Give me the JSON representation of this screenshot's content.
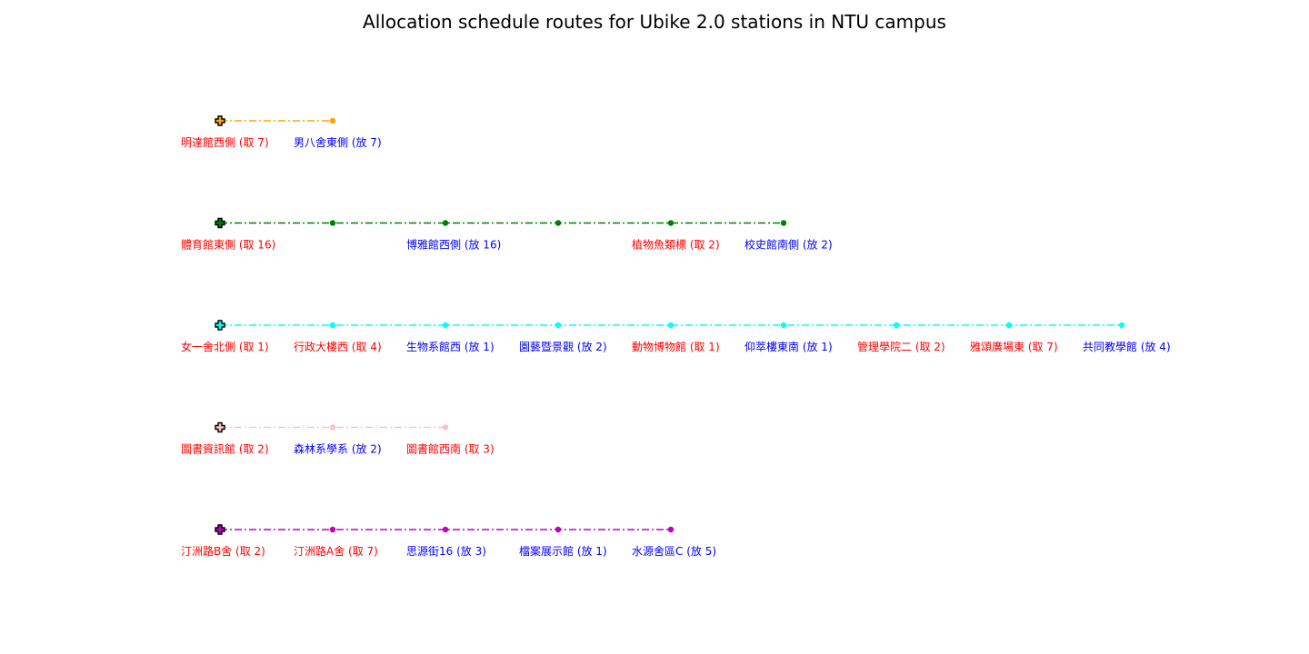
{
  "chart_data": {
    "type": "line",
    "title": "Allocation schedule routes for Ubike 2.0 stations in NTU campus",
    "xlabel": "",
    "ylabel": "",
    "grid": false,
    "axes_visible": false,
    "line_style": "dash-dot",
    "start_marker": "plus",
    "stop_marker": "circle",
    "label_colors": {
      "取": "#ff0000",
      "放": "#0000ff"
    },
    "routes": [
      {
        "color": "#ffa500",
        "stops": [
          {
            "station": "明達館西側",
            "action": "取",
            "qty": 7,
            "label": "明達館西側 (取 7)"
          },
          {
            "station": "男八舍東側",
            "action": "放",
            "qty": 7,
            "label": "男八舍東側 (放 7)"
          }
        ]
      },
      {
        "color": "#008000",
        "stops": [
          {
            "station": "體育館東側",
            "action": "取",
            "qty": 16,
            "label": "體育館東側 (取 16)"
          },
          {
            "station": "",
            "action": "",
            "qty": null,
            "label": ""
          },
          {
            "station": "博雅館西側",
            "action": "放",
            "qty": 16,
            "label": "博雅館西側 (放 16)"
          },
          {
            "station": "",
            "action": "",
            "qty": null,
            "label": ""
          },
          {
            "station": "植物魚類標",
            "action": "取",
            "qty": 2,
            "label": "植物魚類標 (取 2)"
          },
          {
            "station": "校史館南側",
            "action": "放",
            "qty": 2,
            "label": "校史館南側 (放 2)"
          }
        ]
      },
      {
        "color": "#00ffff",
        "stops": [
          {
            "station": "女一舍北側",
            "action": "取",
            "qty": 1,
            "label": "女一舍北側 (取 1)"
          },
          {
            "station": "行政大樓西",
            "action": "取",
            "qty": 4,
            "label": "行政大樓西 (取 4)"
          },
          {
            "station": "生物系館西",
            "action": "放",
            "qty": 1,
            "label": "生物系館西 (放 1)"
          },
          {
            "station": "園藝暨景觀",
            "action": "放",
            "qty": 2,
            "label": "園藝暨景觀 (放 2)"
          },
          {
            "station": "動物博物館",
            "action": "取",
            "qty": 1,
            "label": "動物博物館 (取 1)"
          },
          {
            "station": "仰萃樓東南",
            "action": "放",
            "qty": 1,
            "label": "仰萃樓東南 (放 1)"
          },
          {
            "station": "管理學院二",
            "action": "取",
            "qty": 2,
            "label": "管理學院二 (取 2)"
          },
          {
            "station": "雅頌廣場東",
            "action": "取",
            "qty": 7,
            "label": "雅頌廣場東 (取 7)"
          },
          {
            "station": "共同教學館",
            "action": "放",
            "qty": 4,
            "label": "共同教學館 (放 4)"
          }
        ]
      },
      {
        "color": "#ffc0cb",
        "stops": [
          {
            "station": "圖書資訊館",
            "action": "取",
            "qty": 2,
            "label": "圖書資訊館 (取 2)"
          },
          {
            "station": "森林系學系",
            "action": "放",
            "qty": 2,
            "label": "森林系學系 (放 2)"
          },
          {
            "station": "圖書館西南",
            "action": "取",
            "qty": 3,
            "label": "圖書館西南 (取 3)"
          }
        ]
      },
      {
        "color": "#c000c0",
        "stops": [
          {
            "station": "汀洲路B舍",
            "action": "取",
            "qty": 2,
            "label": "汀洲路B舍 (取 2)"
          },
          {
            "station": "汀洲路A舍",
            "action": "取",
            "qty": 7,
            "label": "汀洲路A舍 (取 7)"
          },
          {
            "station": "思源街16",
            "action": "放",
            "qty": 3,
            "label": "思源街16 (放 3)"
          },
          {
            "station": "檔案展示館",
            "action": "放",
            "qty": 1,
            "label": "檔案展示館 (放 1)"
          },
          {
            "station": "水源舍區C",
            "action": "放",
            "qty": 5,
            "label": "水源舍區C (放 5)"
          }
        ]
      }
    ]
  }
}
